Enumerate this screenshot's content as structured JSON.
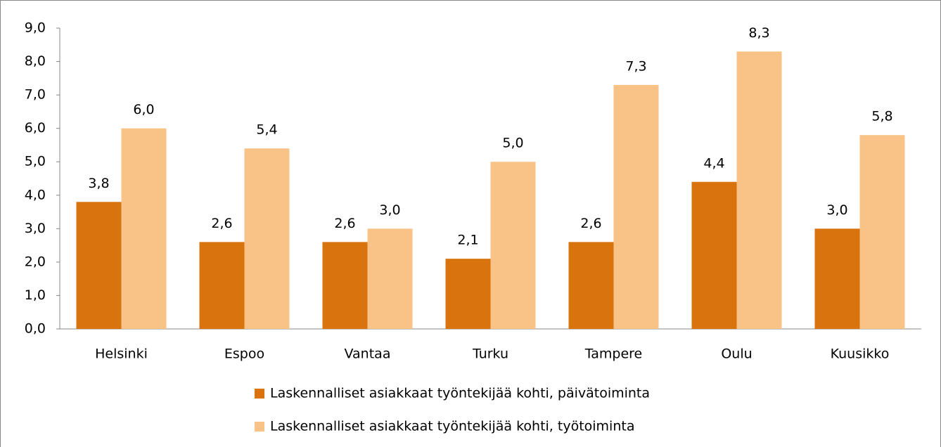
{
  "chart_data": {
    "type": "bar",
    "categories": [
      "Helsinki",
      "Espoo",
      "Vantaa",
      "Turku",
      "Tampere",
      "Oulu",
      "Kuusikko"
    ],
    "series": [
      {
        "name": "Laskennalliset asiakkaat työntekijää kohti, päivätoiminta",
        "color": "#d9730d",
        "values": [
          3.8,
          2.6,
          2.6,
          2.1,
          2.6,
          4.4,
          3.0
        ],
        "value_labels": [
          "3,8",
          "2,6",
          "2,6",
          "2,1",
          "2,6",
          "4,4",
          "3,0"
        ]
      },
      {
        "name": "Laskennalliset asiakkaat työntekijää kohti, työtoiminta",
        "color": "#f9c388",
        "values": [
          6.0,
          5.4,
          3.0,
          5.0,
          7.3,
          8.3,
          5.8
        ],
        "value_labels": [
          "6,0",
          "5,4",
          "3,0",
          "5,0",
          "7,3",
          "8,3",
          "5,8"
        ]
      }
    ],
    "ylim": [
      0,
      9
    ],
    "yticks": [
      {
        "value": 0,
        "label": "0,0"
      },
      {
        "value": 1,
        "label": "1,0"
      },
      {
        "value": 2,
        "label": "2,0"
      },
      {
        "value": 3,
        "label": "3,0"
      },
      {
        "value": 4,
        "label": "4,0"
      },
      {
        "value": 5,
        "label": "5,0"
      },
      {
        "value": 6,
        "label": "6,0"
      },
      {
        "value": 7,
        "label": "7,0"
      },
      {
        "value": 8,
        "label": "8,0"
      },
      {
        "value": 9,
        "label": "9,0"
      }
    ],
    "grid": false,
    "legend": "bottom"
  }
}
